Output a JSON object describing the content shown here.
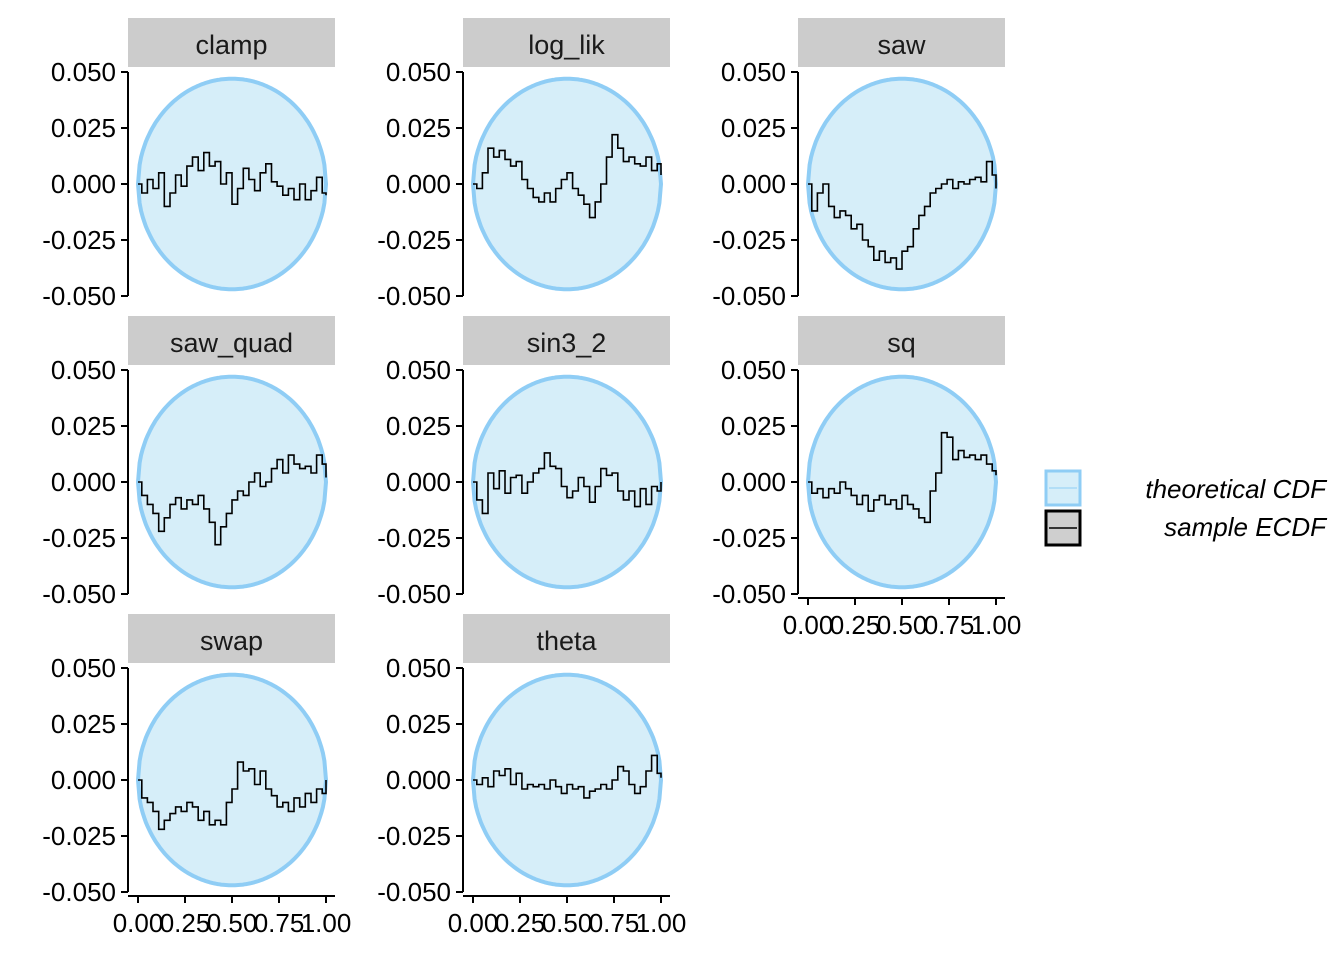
{
  "chart_data": {
    "type": "line",
    "description_free": true,
    "colors": {
      "band_fill": "#d6eef9",
      "band_stroke": "#8fcdf5",
      "ecdf_line": "#000000",
      "strip_bg": "#cccccc"
    },
    "y_ticks": [
      "0.050",
      "0.025",
      "0.000",
      "-0.025",
      "-0.050"
    ],
    "y_tick_values": [
      0.05,
      0.025,
      0.0,
      -0.025,
      -0.05
    ],
    "ylim": [
      -0.05,
      0.05
    ],
    "x_ticks": [
      "0.00",
      "0.25",
      "0.50",
      "0.75",
      "1.00"
    ],
    "x_tick_values": [
      0,
      0.25,
      0.5,
      0.75,
      1.0
    ],
    "xlim": [
      0,
      1
    ],
    "band_halfwidth_max": 0.047,
    "legend": {
      "items": [
        {
          "label": "theoretical CDF",
          "kind": "band"
        },
        {
          "label": "sample ECDF",
          "kind": "line"
        }
      ]
    },
    "panels": [
      {
        "label": "clamp",
        "row": 0,
        "col": 0,
        "show_x_axis": false,
        "x": [
          0,
          0.02,
          0.05,
          0.08,
          0.11,
          0.14,
          0.17,
          0.2,
          0.23,
          0.26,
          0.29,
          0.32,
          0.35,
          0.38,
          0.41,
          0.44,
          0.47,
          0.5,
          0.53,
          0.56,
          0.59,
          0.62,
          0.65,
          0.68,
          0.71,
          0.74,
          0.77,
          0.8,
          0.83,
          0.86,
          0.89,
          0.92,
          0.95,
          0.98,
          1.0
        ],
        "y": [
          0,
          -0.004,
          0.002,
          -0.002,
          0.005,
          -0.01,
          -0.004,
          0.004,
          -0.001,
          0.008,
          0.012,
          0.006,
          0.014,
          0.008,
          0.01,
          0.0,
          0.005,
          -0.009,
          -0.002,
          0.007,
          0.002,
          -0.003,
          0.005,
          0.009,
          0.001,
          -0.001,
          -0.005,
          -0.002,
          -0.007,
          0.0,
          -0.007,
          -0.003,
          0.003,
          -0.004,
          -0.005
        ]
      },
      {
        "label": "log_lik",
        "row": 0,
        "col": 1,
        "show_x_axis": false,
        "x": [
          0,
          0.02,
          0.05,
          0.08,
          0.11,
          0.14,
          0.17,
          0.2,
          0.23,
          0.26,
          0.29,
          0.32,
          0.35,
          0.38,
          0.41,
          0.44,
          0.47,
          0.5,
          0.53,
          0.56,
          0.59,
          0.62,
          0.65,
          0.68,
          0.71,
          0.74,
          0.77,
          0.8,
          0.83,
          0.86,
          0.89,
          0.92,
          0.95,
          0.98,
          1.0
        ],
        "y": [
          0,
          -0.002,
          0.005,
          0.016,
          0.012,
          0.015,
          0.011,
          0.008,
          0.01,
          0.002,
          -0.002,
          -0.006,
          -0.008,
          -0.004,
          -0.008,
          -0.002,
          0.002,
          0.005,
          -0.002,
          -0.005,
          -0.009,
          -0.015,
          -0.008,
          0.0,
          0.012,
          0.022,
          0.016,
          0.01,
          0.012,
          0.009,
          0.008,
          0.012,
          0.006,
          0.009,
          0.004
        ]
      },
      {
        "label": "saw",
        "row": 0,
        "col": 2,
        "show_x_axis": false,
        "x": [
          0,
          0.02,
          0.05,
          0.08,
          0.11,
          0.14,
          0.17,
          0.2,
          0.23,
          0.26,
          0.29,
          0.32,
          0.35,
          0.38,
          0.41,
          0.44,
          0.47,
          0.5,
          0.53,
          0.56,
          0.59,
          0.62,
          0.65,
          0.68,
          0.71,
          0.74,
          0.77,
          0.8,
          0.83,
          0.86,
          0.89,
          0.92,
          0.95,
          0.98,
          1.0
        ],
        "y": [
          0,
          -0.012,
          -0.004,
          0.0,
          -0.01,
          -0.015,
          -0.012,
          -0.014,
          -0.02,
          -0.018,
          -0.025,
          -0.028,
          -0.034,
          -0.03,
          -0.035,
          -0.033,
          -0.038,
          -0.03,
          -0.028,
          -0.02,
          -0.014,
          -0.01,
          -0.004,
          -0.002,
          0.0,
          0.002,
          -0.002,
          0.001,
          0.0,
          0.002,
          0.003,
          0.001,
          0.01,
          0.004,
          -0.002
        ]
      },
      {
        "label": "saw_quad",
        "row": 1,
        "col": 0,
        "show_x_axis": false,
        "x": [
          0,
          0.02,
          0.05,
          0.08,
          0.11,
          0.14,
          0.17,
          0.2,
          0.23,
          0.26,
          0.29,
          0.32,
          0.35,
          0.38,
          0.41,
          0.44,
          0.47,
          0.5,
          0.53,
          0.56,
          0.59,
          0.62,
          0.65,
          0.68,
          0.71,
          0.74,
          0.77,
          0.8,
          0.83,
          0.86,
          0.89,
          0.92,
          0.95,
          0.98,
          1.0
        ],
        "y": [
          0,
          -0.006,
          -0.01,
          -0.014,
          -0.022,
          -0.016,
          -0.01,
          -0.007,
          -0.012,
          -0.008,
          -0.01,
          -0.006,
          -0.012,
          -0.018,
          -0.028,
          -0.02,
          -0.014,
          -0.008,
          -0.004,
          -0.006,
          0.0,
          0.004,
          -0.002,
          0.0,
          0.006,
          0.01,
          0.004,
          0.012,
          0.008,
          0.006,
          0.007,
          0.004,
          0.012,
          0.008,
          0.002
        ]
      },
      {
        "label": "sin3_2",
        "row": 1,
        "col": 1,
        "show_x_axis": false,
        "x": [
          0,
          0.02,
          0.05,
          0.08,
          0.11,
          0.14,
          0.17,
          0.2,
          0.23,
          0.26,
          0.29,
          0.32,
          0.35,
          0.38,
          0.41,
          0.44,
          0.47,
          0.5,
          0.53,
          0.56,
          0.59,
          0.62,
          0.65,
          0.68,
          0.71,
          0.74,
          0.77,
          0.8,
          0.83,
          0.86,
          0.89,
          0.92,
          0.95,
          0.98,
          1.0
        ],
        "y": [
          0,
          -0.008,
          -0.014,
          0.004,
          -0.003,
          0.005,
          -0.005,
          0.002,
          0.003,
          -0.005,
          0.0,
          0.004,
          0.006,
          0.013,
          0.007,
          0.006,
          -0.002,
          -0.007,
          -0.004,
          0.002,
          -0.002,
          -0.009,
          -0.002,
          0.006,
          0.003,
          0.004,
          -0.004,
          -0.008,
          -0.004,
          -0.011,
          -0.003,
          -0.01,
          -0.002,
          -0.004,
          0.0
        ]
      },
      {
        "label": "sq",
        "row": 1,
        "col": 2,
        "show_x_axis": true,
        "x": [
          0,
          0.02,
          0.05,
          0.08,
          0.11,
          0.14,
          0.17,
          0.2,
          0.23,
          0.26,
          0.29,
          0.32,
          0.35,
          0.38,
          0.41,
          0.44,
          0.47,
          0.5,
          0.53,
          0.56,
          0.59,
          0.62,
          0.65,
          0.68,
          0.71,
          0.74,
          0.77,
          0.8,
          0.83,
          0.86,
          0.89,
          0.92,
          0.95,
          0.98,
          1.0
        ],
        "y": [
          0,
          -0.005,
          -0.003,
          -0.007,
          -0.003,
          -0.005,
          0.0,
          -0.003,
          -0.006,
          -0.01,
          -0.006,
          -0.013,
          -0.008,
          -0.006,
          -0.01,
          -0.008,
          -0.012,
          -0.006,
          -0.01,
          -0.012,
          -0.016,
          -0.018,
          -0.004,
          0.004,
          0.022,
          0.02,
          0.01,
          0.014,
          0.011,
          0.012,
          0.01,
          0.012,
          0.008,
          0.005,
          0.003
        ]
      },
      {
        "label": "swap",
        "row": 2,
        "col": 0,
        "show_x_axis": true,
        "x": [
          0,
          0.02,
          0.05,
          0.08,
          0.11,
          0.14,
          0.17,
          0.2,
          0.23,
          0.26,
          0.29,
          0.32,
          0.35,
          0.38,
          0.41,
          0.44,
          0.47,
          0.5,
          0.53,
          0.56,
          0.59,
          0.62,
          0.65,
          0.68,
          0.71,
          0.74,
          0.77,
          0.8,
          0.83,
          0.86,
          0.89,
          0.92,
          0.95,
          0.98,
          1.0
        ],
        "y": [
          0,
          -0.008,
          -0.01,
          -0.014,
          -0.022,
          -0.018,
          -0.015,
          -0.012,
          -0.014,
          -0.01,
          -0.012,
          -0.018,
          -0.014,
          -0.02,
          -0.018,
          -0.02,
          -0.01,
          -0.004,
          0.008,
          0.004,
          0.005,
          -0.002,
          0.004,
          -0.004,
          -0.007,
          -0.012,
          -0.01,
          -0.014,
          -0.008,
          -0.012,
          -0.006,
          -0.01,
          -0.004,
          -0.006,
          0.0
        ]
      },
      {
        "label": "theta",
        "row": 2,
        "col": 1,
        "show_x_axis": true,
        "x": [
          0,
          0.02,
          0.05,
          0.08,
          0.11,
          0.14,
          0.17,
          0.2,
          0.23,
          0.26,
          0.29,
          0.32,
          0.35,
          0.38,
          0.41,
          0.44,
          0.47,
          0.5,
          0.53,
          0.56,
          0.59,
          0.62,
          0.65,
          0.68,
          0.71,
          0.74,
          0.77,
          0.8,
          0.83,
          0.86,
          0.89,
          0.92,
          0.95,
          0.98,
          1.0
        ],
        "y": [
          0,
          -0.002,
          0.001,
          -0.003,
          0.004,
          0.002,
          0.005,
          -0.002,
          0.003,
          -0.004,
          -0.002,
          -0.003,
          -0.002,
          -0.004,
          0.0,
          -0.003,
          -0.006,
          -0.002,
          -0.004,
          -0.003,
          -0.008,
          -0.005,
          -0.004,
          -0.002,
          -0.004,
          0.0,
          0.006,
          0.004,
          -0.002,
          -0.006,
          -0.003,
          0.004,
          0.011,
          0.003,
          0.001
        ]
      }
    ]
  }
}
